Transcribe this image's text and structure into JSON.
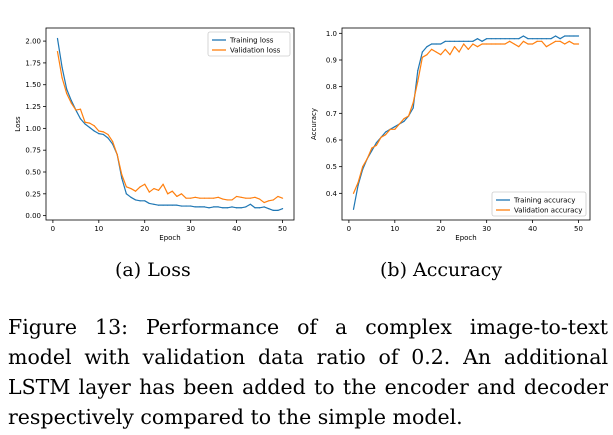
{
  "chart_data": [
    {
      "type": "line",
      "xlabel": "Epoch",
      "ylabel": "Loss",
      "xlim": [
        -1.5,
        52.5
      ],
      "ylim": [
        -0.05,
        2.15
      ],
      "xticks": [
        0,
        10,
        20,
        30,
        40,
        50
      ],
      "yticks": [
        0.0,
        0.25,
        0.5,
        0.75,
        1.0,
        1.25,
        1.5,
        1.75,
        2.0
      ],
      "ytick_labels": [
        "0.00",
        "0.25",
        "0.50",
        "0.75",
        "1.00",
        "1.25",
        "1.50",
        "1.75",
        "2.00"
      ],
      "legend_loc": "top-right",
      "x": [
        1,
        2,
        3,
        4,
        5,
        6,
        7,
        8,
        9,
        10,
        11,
        12,
        13,
        14,
        15,
        16,
        17,
        18,
        19,
        20,
        21,
        22,
        23,
        24,
        25,
        26,
        27,
        28,
        29,
        30,
        31,
        32,
        33,
        34,
        35,
        36,
        37,
        38,
        39,
        40,
        41,
        42,
        43,
        44,
        45,
        46,
        47,
        48,
        49,
        50
      ],
      "series": [
        {
          "name": "Training loss",
          "color": "#1f77b4",
          "values": [
            2.03,
            1.7,
            1.45,
            1.32,
            1.21,
            1.11,
            1.05,
            1.01,
            0.97,
            0.94,
            0.93,
            0.89,
            0.82,
            0.7,
            0.43,
            0.25,
            0.21,
            0.18,
            0.17,
            0.17,
            0.14,
            0.13,
            0.12,
            0.12,
            0.12,
            0.12,
            0.12,
            0.11,
            0.11,
            0.11,
            0.1,
            0.1,
            0.1,
            0.09,
            0.1,
            0.1,
            0.09,
            0.09,
            0.1,
            0.09,
            0.09,
            0.1,
            0.13,
            0.09,
            0.09,
            0.1,
            0.08,
            0.06,
            0.06,
            0.08
          ]
        },
        {
          "name": "Validation loss",
          "color": "#ff7f0e",
          "values": [
            1.88,
            1.58,
            1.4,
            1.29,
            1.21,
            1.22,
            1.07,
            1.06,
            1.03,
            0.97,
            0.96,
            0.93,
            0.85,
            0.7,
            0.47,
            0.33,
            0.31,
            0.28,
            0.33,
            0.36,
            0.27,
            0.31,
            0.29,
            0.36,
            0.25,
            0.28,
            0.22,
            0.25,
            0.2,
            0.2,
            0.21,
            0.2,
            0.2,
            0.2,
            0.2,
            0.21,
            0.19,
            0.18,
            0.18,
            0.22,
            0.21,
            0.2,
            0.2,
            0.21,
            0.19,
            0.15,
            0.17,
            0.18,
            0.22,
            0.2
          ]
        }
      ]
    },
    {
      "type": "line",
      "xlabel": "Epoch",
      "ylabel": "Accuracy",
      "xlim": [
        -1.5,
        52.5
      ],
      "ylim": [
        0.3,
        1.02
      ],
      "xticks": [
        0,
        10,
        20,
        30,
        40,
        50
      ],
      "yticks": [
        0.4,
        0.5,
        0.6,
        0.7,
        0.8,
        0.9,
        1.0
      ],
      "ytick_labels": [
        "0.4",
        "0.5",
        "0.6",
        "0.7",
        "0.8",
        "0.9",
        "1.0"
      ],
      "legend_loc": "bottom-right",
      "x": [
        1,
        2,
        3,
        4,
        5,
        6,
        7,
        8,
        9,
        10,
        11,
        12,
        13,
        14,
        15,
        16,
        17,
        18,
        19,
        20,
        21,
        22,
        23,
        24,
        25,
        26,
        27,
        28,
        29,
        30,
        31,
        32,
        33,
        34,
        35,
        36,
        37,
        38,
        39,
        40,
        41,
        42,
        43,
        44,
        45,
        46,
        47,
        48,
        49,
        50
      ],
      "series": [
        {
          "name": "Training accuracy",
          "color": "#1f77b4",
          "values": [
            0.34,
            0.43,
            0.49,
            0.53,
            0.56,
            0.59,
            0.61,
            0.63,
            0.64,
            0.65,
            0.66,
            0.67,
            0.69,
            0.72,
            0.86,
            0.93,
            0.95,
            0.96,
            0.96,
            0.96,
            0.97,
            0.97,
            0.97,
            0.97,
            0.97,
            0.97,
            0.97,
            0.98,
            0.97,
            0.98,
            0.98,
            0.98,
            0.98,
            0.98,
            0.98,
            0.98,
            0.98,
            0.99,
            0.98,
            0.98,
            0.98,
            0.98,
            0.98,
            0.98,
            0.99,
            0.98,
            0.99,
            0.99,
            0.99,
            0.99
          ]
        },
        {
          "name": "Validation accuracy",
          "color": "#ff7f0e",
          "values": [
            0.4,
            0.44,
            0.5,
            0.53,
            0.57,
            0.58,
            0.61,
            0.62,
            0.64,
            0.64,
            0.66,
            0.68,
            0.69,
            0.74,
            0.82,
            0.91,
            0.92,
            0.94,
            0.93,
            0.92,
            0.94,
            0.92,
            0.95,
            0.93,
            0.96,
            0.94,
            0.96,
            0.95,
            0.96,
            0.96,
            0.96,
            0.96,
            0.96,
            0.96,
            0.97,
            0.96,
            0.95,
            0.97,
            0.96,
            0.96,
            0.97,
            0.97,
            0.95,
            0.96,
            0.97,
            0.97,
            0.96,
            0.97,
            0.96,
            0.96
          ]
        }
      ]
    }
  ],
  "subcaptions": {
    "a": "(a) Loss",
    "b": "(b) Accuracy"
  },
  "caption": "Figure 13: Performance of a complex image-to-text model with validation data ratio of 0.2. An additional LSTM layer has been added to the encoder and decoder respectively compared to the simple model."
}
